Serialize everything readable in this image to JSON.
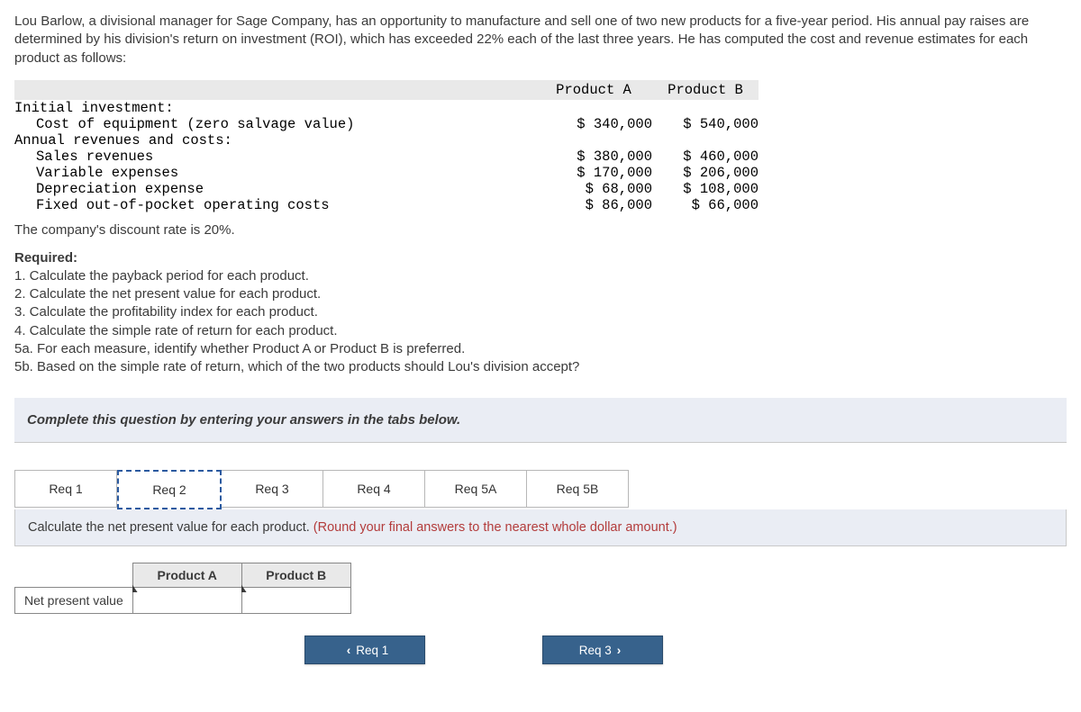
{
  "problem": {
    "intro": "Lou Barlow, a divisional manager for Sage Company, has an opportunity to manufacture and sell one of two new products for a five-year period. His annual pay raises are determined by his division's return on investment (ROI), which has exceeded 22% each of the last three years. He has computed the cost and revenue estimates for each product as follows:"
  },
  "data_table": {
    "header_a": "Product A",
    "header_b": "Product B",
    "rows": {
      "initial_investment_label": "Initial investment:",
      "cost_of_equipment_label": "Cost of equipment (zero salvage value)",
      "cost_of_equipment_a": "$ 340,000",
      "cost_of_equipment_b": "$ 540,000",
      "annual_label": "Annual revenues and costs:",
      "sales_rev_label": "Sales revenues",
      "sales_rev_a": "$ 380,000",
      "sales_rev_b": "$ 460,000",
      "var_exp_label": "Variable expenses",
      "var_exp_a": "$ 170,000",
      "var_exp_b": "$ 206,000",
      "dep_label": "Depreciation expense",
      "dep_a": "$ 68,000",
      "dep_b": "$ 108,000",
      "fixed_label": "Fixed out-of-pocket operating costs",
      "fixed_a": "$ 86,000",
      "fixed_b": "$ 66,000"
    }
  },
  "discount_rate_text": "The company's discount rate is 20%.",
  "required_heading": "Required:",
  "required_items": {
    "r1": "1. Calculate the payback period for each product.",
    "r2": "2. Calculate the net present value for each product.",
    "r3": "3. Calculate the profitability index for each product.",
    "r4": "4. Calculate the simple rate of return for each product.",
    "r5a": "5a. For each measure, identify whether Product A or Product B is preferred.",
    "r5b": "5b. Based on the simple rate of return, which of the two products should Lou's division accept?"
  },
  "instruction_bar": "Complete this question by entering your answers in the tabs below.",
  "tabs": {
    "t1": "Req 1",
    "t2": "Req 2",
    "t3": "Req 3",
    "t4": "Req 4",
    "t5a": "Req 5A",
    "t5b": "Req 5B",
    "active": "t2"
  },
  "desc": {
    "main": "Calculate the net present value for each product. ",
    "hint": "(Round your final answers to the nearest whole dollar amount.)"
  },
  "entry_table": {
    "col_a": "Product A",
    "col_b": "Product B",
    "row_label": "Net present value",
    "value_a": "",
    "value_b": ""
  },
  "nav": {
    "prev": "Req 1",
    "next": "Req 3"
  },
  "colors": {
    "panel_bg": "#eaedf4",
    "hint_red": "#b33c3c",
    "btn_blue": "#37628c",
    "tab_active_border": "#2b5aa0"
  }
}
